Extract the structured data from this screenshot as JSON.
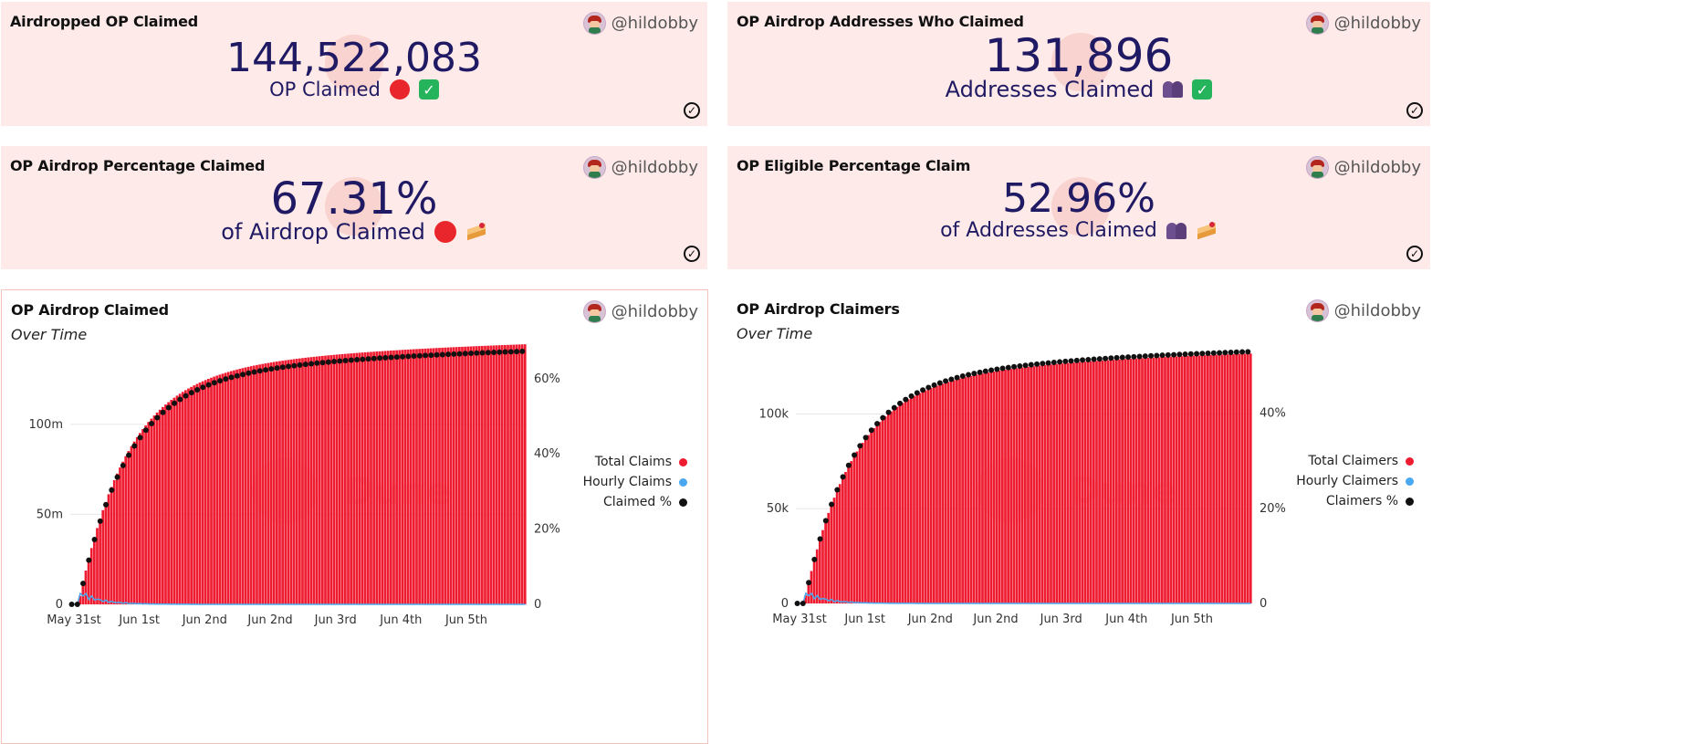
{
  "author": "@hildobby",
  "cards": {
    "op_claimed": {
      "title": "Airdropped OP Claimed",
      "value": "144,522,083",
      "label": "OP Claimed"
    },
    "addresses_claimed": {
      "title": "OP Airdrop Addresses Who Claimed",
      "value": "131,896",
      "label": "Addresses Claimed"
    },
    "percentage_claimed": {
      "title": "OP Airdrop Percentage Claimed",
      "value": "67.31%",
      "label": "of Airdrop Claimed"
    },
    "eligible_percentage": {
      "title": "OP Eligible Percentage Claim",
      "value": "52.96%",
      "label": "of Addresses Claimed"
    }
  },
  "icons": {
    "red_circle": "red-circle-icon",
    "check_box": "check-mark-button-icon",
    "people": "people-icon",
    "cake": "cake-icon",
    "status_check": "check-circle-icon"
  },
  "colors": {
    "counter_text": "#1f1a63",
    "card_bg": "#feeae8",
    "bar_red": "#ef1b31",
    "hourly_blue": "#4aa8f0",
    "percent_black": "#111111"
  },
  "watermark_text": "Dune",
  "chart_data": [
    {
      "type": "bar",
      "title": "OP Airdrop Claimed",
      "subtitle": "Over Time",
      "x_ticks": [
        "May 31st",
        "Jun 1st",
        "Jun 2nd",
        "Jun 2nd",
        "Jun 3rd",
        "Jun 4th",
        "Jun 5th"
      ],
      "y_left_ticks": [
        "0",
        "50m",
        "100m"
      ],
      "y_left_max": 140000000,
      "y_right_ticks": [
        "0",
        "20%",
        "40%",
        "60%"
      ],
      "y_right_max": 0.67,
      "legend": [
        "Total Claims",
        "Hourly Claims",
        "Claimed %"
      ],
      "legend_position": "right",
      "series": [
        {
          "name": "Total Claims",
          "kind": "bar",
          "color": "#ef1b31",
          "final": 144500000
        },
        {
          "name": "Hourly Claims",
          "kind": "line",
          "color": "#4aa8f0",
          "peak": 9000000
        },
        {
          "name": "Claimed %",
          "kind": "points",
          "color": "#111111",
          "final": 0.673
        }
      ]
    },
    {
      "type": "bar",
      "title": "OP Airdrop Claimers",
      "subtitle": "Over Time",
      "x_ticks": [
        "May 31st",
        "Jun 1st",
        "Jun 2nd",
        "Jun 2nd",
        "Jun 3rd",
        "Jun 4th",
        "Jun 5th"
      ],
      "y_left_ticks": [
        "0",
        "50k",
        "100k"
      ],
      "y_left_max": 133000,
      "y_right_ticks": [
        "0",
        "20%",
        "40%"
      ],
      "y_right_max": 0.53,
      "legend": [
        "Total Claimers",
        "Hourly Claimers",
        "Claimers %"
      ],
      "legend_position": "right",
      "series": [
        {
          "name": "Total Claimers",
          "kind": "bar",
          "color": "#ef1b31",
          "final": 131900
        },
        {
          "name": "Hourly Claimers",
          "kind": "line",
          "color": "#4aa8f0",
          "peak": 8000
        },
        {
          "name": "Claimers %",
          "kind": "points",
          "color": "#111111",
          "final": 0.5296
        }
      ]
    }
  ]
}
